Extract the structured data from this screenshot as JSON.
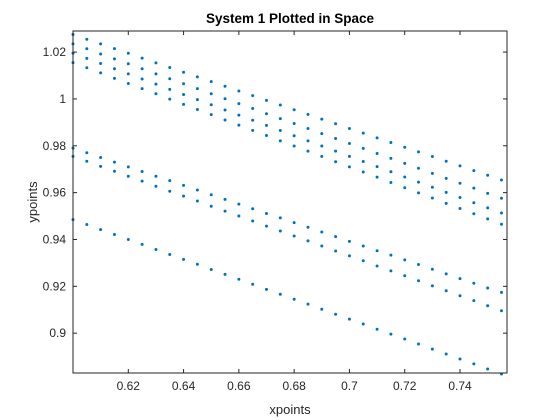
{
  "chart_data": {
    "type": "scatter",
    "title": "System 1 Plotted in Space",
    "xlabel": "xpoints",
    "ylabel": "ypoints",
    "xlim": [
      0.6,
      0.757
    ],
    "ylim": [
      0.883,
      1.029
    ],
    "xticks": [
      0.62,
      0.64,
      0.66,
      0.68,
      0.7,
      0.72,
      0.74
    ],
    "yticks": [
      0.9,
      0.92,
      0.94,
      0.96,
      0.98,
      1,
      1.02
    ],
    "xtick_labels": [
      "0.62",
      "0.64",
      "0.66",
      "0.68",
      "0.7",
      "0.72",
      "0.74"
    ],
    "ytick_labels": [
      "0.9",
      "0.92",
      "0.94",
      "0.96",
      "0.98",
      "1",
      "1.02"
    ],
    "grid": false,
    "marker_color": "#0072BD",
    "series": [
      {
        "x": [
          0.6,
          0.605,
          0.61,
          0.615,
          0.62,
          0.625,
          0.63,
          0.635,
          0.64,
          0.645,
          0.65,
          0.655,
          0.66,
          0.665,
          0.67,
          0.675,
          0.68,
          0.685,
          0.69,
          0.695,
          0.7,
          0.705,
          0.71,
          0.715,
          0.72,
          0.725,
          0.73,
          0.735,
          0.74,
          0.745,
          0.75,
          0.755
        ],
        "y": [
          1.0275,
          1.0255,
          1.0235,
          1.0215,
          1.0195,
          1.0174,
          1.0154,
          1.0134,
          1.0114,
          1.0094,
          1.0074,
          1.0054,
          1.0034,
          1.0014,
          0.9994,
          0.9974,
          0.9954,
          0.9934,
          0.9914,
          0.9894,
          0.9874,
          0.9854,
          0.9834,
          0.9814,
          0.9794,
          0.9774,
          0.9754,
          0.9734,
          0.9714,
          0.9694,
          0.9674,
          0.9654
        ]
      },
      {
        "x": [
          0.6,
          0.605,
          0.61,
          0.615,
          0.62,
          0.625,
          0.63,
          0.635,
          0.64,
          0.645,
          0.65,
          0.655,
          0.66,
          0.665,
          0.67,
          0.675,
          0.68,
          0.685,
          0.69,
          0.695,
          0.7,
          0.705,
          0.71,
          0.715,
          0.72,
          0.725,
          0.73,
          0.735,
          0.74,
          0.745,
          0.75,
          0.755
        ],
        "y": [
          1.0235,
          1.0214,
          1.0192,
          1.0171,
          1.015,
          1.0129,
          1.0107,
          1.0086,
          1.0065,
          1.0044,
          1.0022,
          1.0001,
          0.998,
          0.9959,
          0.9937,
          0.9916,
          0.9895,
          0.9874,
          0.9852,
          0.9831,
          0.981,
          0.9789,
          0.9767,
          0.9746,
          0.9725,
          0.9704,
          0.9682,
          0.9661,
          0.964,
          0.9619,
          0.9597,
          0.9576
        ]
      },
      {
        "x": [
          0.6,
          0.605,
          0.61,
          0.615,
          0.62,
          0.625,
          0.63,
          0.635,
          0.64,
          0.645,
          0.65,
          0.655,
          0.66,
          0.665,
          0.67,
          0.675,
          0.68,
          0.685,
          0.69,
          0.695,
          0.7,
          0.705,
          0.71,
          0.715,
          0.72,
          0.725,
          0.73,
          0.735,
          0.74,
          0.745,
          0.75,
          0.755
        ],
        "y": [
          1.0195,
          1.0173,
          1.0151,
          1.0129,
          1.0107,
          1.0085,
          1.0063,
          1.0041,
          1.0019,
          0.9997,
          0.9975,
          0.9953,
          0.9931,
          0.9909,
          0.9887,
          0.9865,
          0.9843,
          0.9821,
          0.9799,
          0.9777,
          0.9755,
          0.9733,
          0.9711,
          0.9689,
          0.9667,
          0.9645,
          0.9623,
          0.9601,
          0.9579,
          0.9557,
          0.9535,
          0.9513
        ]
      },
      {
        "x": [
          0.6,
          0.605,
          0.61,
          0.615,
          0.62,
          0.625,
          0.63,
          0.635,
          0.64,
          0.645,
          0.65,
          0.655,
          0.66,
          0.665,
          0.67,
          0.675,
          0.68,
          0.685,
          0.69,
          0.695,
          0.7,
          0.705,
          0.71,
          0.715,
          0.72,
          0.725,
          0.73,
          0.735,
          0.74,
          0.745,
          0.75,
          0.755
        ],
        "y": [
          1.0155,
          1.0133,
          1.0111,
          1.0088,
          1.0066,
          1.0044,
          1.0022,
          0.9999,
          0.9977,
          0.9955,
          0.9933,
          0.991,
          0.9888,
          0.9866,
          0.9844,
          0.9821,
          0.9799,
          0.9777,
          0.9755,
          0.9732,
          0.971,
          0.9688,
          0.9666,
          0.9643,
          0.9621,
          0.9599,
          0.9577,
          0.9554,
          0.9532,
          0.951,
          0.9488,
          0.9465
        ]
      },
      {
        "x": [
          0.6,
          0.605,
          0.61,
          0.615,
          0.62,
          0.625,
          0.63,
          0.635,
          0.64,
          0.645,
          0.65,
          0.655,
          0.66,
          0.665,
          0.67,
          0.675,
          0.68,
          0.685,
          0.69,
          0.695,
          0.7,
          0.705,
          0.71,
          0.715,
          0.72,
          0.725,
          0.73,
          0.735,
          0.74,
          0.745,
          0.75,
          0.755
        ],
        "y": [
          0.979,
          0.977,
          0.975,
          0.973,
          0.971,
          0.969,
          0.967,
          0.9651,
          0.9631,
          0.9611,
          0.9591,
          0.9571,
          0.9551,
          0.9531,
          0.9511,
          0.9492,
          0.9472,
          0.9452,
          0.9432,
          0.9412,
          0.9392,
          0.9372,
          0.9352,
          0.9333,
          0.9313,
          0.9293,
          0.9273,
          0.9253,
          0.9233,
          0.9213,
          0.9193,
          0.9174
        ]
      },
      {
        "x": [
          0.6,
          0.605,
          0.61,
          0.615,
          0.62,
          0.625,
          0.63,
          0.635,
          0.64,
          0.645,
          0.65,
          0.655,
          0.66,
          0.665,
          0.67,
          0.675,
          0.68,
          0.685,
          0.69,
          0.695,
          0.7,
          0.705,
          0.71,
          0.715,
          0.72,
          0.725,
          0.73,
          0.735,
          0.74,
          0.745,
          0.75,
          0.755
        ],
        "y": [
          0.9755,
          0.9734,
          0.9712,
          0.9691,
          0.967,
          0.9649,
          0.9627,
          0.9606,
          0.9585,
          0.9564,
          0.9542,
          0.9521,
          0.95,
          0.9479,
          0.9457,
          0.9436,
          0.9415,
          0.9394,
          0.9372,
          0.9351,
          0.933,
          0.9309,
          0.9287,
          0.9266,
          0.9245,
          0.9224,
          0.9202,
          0.9181,
          0.916,
          0.9139,
          0.9117,
          0.9096
        ]
      },
      {
        "x": [
          0.6,
          0.605,
          0.61,
          0.615,
          0.62,
          0.625,
          0.63,
          0.635,
          0.64,
          0.645,
          0.65,
          0.655,
          0.66,
          0.665,
          0.67,
          0.675,
          0.68,
          0.685,
          0.69,
          0.695,
          0.7,
          0.705,
          0.71,
          0.715,
          0.72,
          0.725,
          0.73,
          0.735,
          0.74,
          0.745,
          0.75,
          0.755
        ],
        "y": [
          0.9485,
          0.9464,
          0.9442,
          0.9421,
          0.94,
          0.9379,
          0.9357,
          0.9336,
          0.9315,
          0.9294,
          0.9272,
          0.9251,
          0.923,
          0.9209,
          0.9187,
          0.9166,
          0.9145,
          0.9124,
          0.9102,
          0.9081,
          0.906,
          0.9039,
          0.9017,
          0.8996,
          0.8975,
          0.8954,
          0.8932,
          0.8911,
          0.889,
          0.8869,
          0.8847,
          0.8826
        ]
      }
    ]
  }
}
